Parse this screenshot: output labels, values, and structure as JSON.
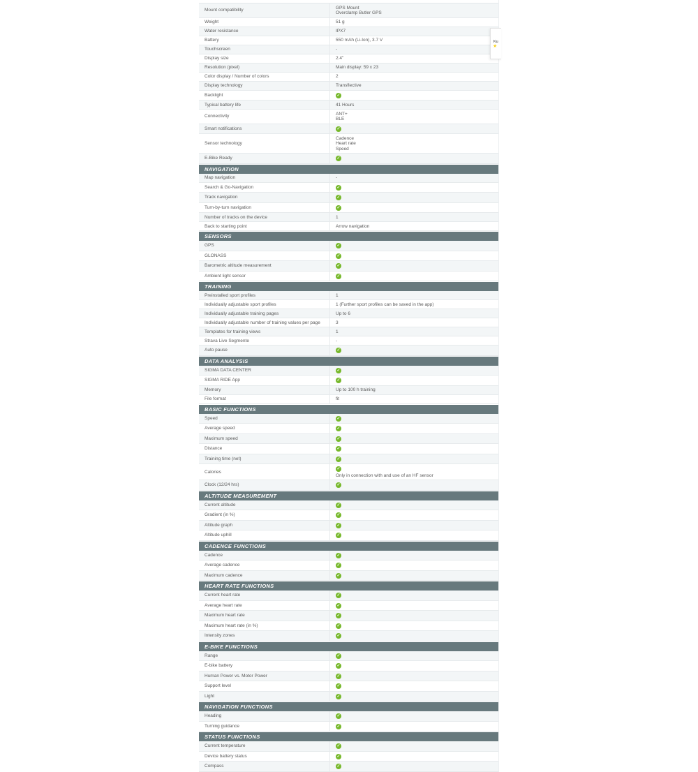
{
  "badge": {
    "label_fragment": "Ku",
    "star": "★"
  },
  "colors": {
    "section_header_bg": "#67797d",
    "check_green": "#76b82a",
    "row_alt_bg": "#f3f6f7",
    "star_yellow": "#f8d21c"
  },
  "check_symbol": "✓",
  "table": {
    "sections": [
      {
        "title": "",
        "rows": [
          {
            "label": "Mount compatibility",
            "lines": [
              "GPS Mount",
              "Overclamp Butler GPS"
            ]
          },
          {
            "label": "Weight",
            "lines": [
              "51 g"
            ]
          },
          {
            "label": "Water resistance",
            "lines": [
              "IPX7"
            ]
          },
          {
            "label": "Battery",
            "lines": [
              "550 mAh (Li-Ion), 3.7 V"
            ]
          },
          {
            "label": "Touchscreen",
            "lines": [
              "-"
            ]
          },
          {
            "label": "Display size",
            "lines": [
              "2.4\""
            ]
          },
          {
            "label": "Resolution (pixel)",
            "lines": [
              "Main display: 59 x 23"
            ]
          },
          {
            "label": "Color display / Number of colors",
            "lines": [
              "2"
            ]
          },
          {
            "label": "Display technology",
            "lines": [
              "Transflective"
            ]
          },
          {
            "label": "Backlight",
            "check": true
          },
          {
            "label": "Typical battery life",
            "lines": [
              "41 Hours"
            ]
          },
          {
            "label": "Connectivity",
            "lines": [
              "ANT+",
              "BLE"
            ]
          },
          {
            "label": "Smart notifications",
            "check": true
          },
          {
            "label": "Sensor technology",
            "lines": [
              "Cadence",
              "Heart rate",
              "Speed"
            ]
          },
          {
            "label": "E-Bike Ready",
            "check": true
          }
        ]
      },
      {
        "title": "NAVIGATION",
        "rows": [
          {
            "label": "Map navigation",
            "lines": [
              "-"
            ]
          },
          {
            "label": "Search & Go-Navigation",
            "check": true
          },
          {
            "label": "Track navigation",
            "check": true
          },
          {
            "label": "Turn-by-turn navigation",
            "check": true
          },
          {
            "label": "Number of tracks on the device",
            "lines": [
              "1"
            ]
          },
          {
            "label": "Back to starting point",
            "lines": [
              "Arrow navigation"
            ]
          }
        ]
      },
      {
        "title": "SENSORS",
        "rows": [
          {
            "label": "GPS",
            "check": true
          },
          {
            "label": "GLONASS",
            "check": true
          },
          {
            "label": "Barometric altitude measurement",
            "check": true
          },
          {
            "label": "Ambient light sensor",
            "check": true
          }
        ]
      },
      {
        "title": "TRAINING",
        "rows": [
          {
            "label": "Preinstalled sport profiles",
            "lines": [
              "1"
            ]
          },
          {
            "label": "Individually adjustable sport profiles",
            "lines": [
              "1 (Further sport profiles can be saved in the app)"
            ]
          },
          {
            "label": "Individually adjustable training pages",
            "lines": [
              "Up to 6"
            ]
          },
          {
            "label": "Individually adjustable number of training values per page",
            "lines": [
              "3"
            ]
          },
          {
            "label": "Templates for training views",
            "lines": [
              "1"
            ]
          },
          {
            "label": "Strava Live Segmente",
            "lines": [
              "-"
            ]
          },
          {
            "label": "Auto pause",
            "check": true
          }
        ]
      },
      {
        "title": "DATA ANALYSIS",
        "rows": [
          {
            "label": "SIGMA DATA CENTER",
            "check": true
          },
          {
            "label": "SIGMA RIDE App",
            "check": true
          },
          {
            "label": "Memory",
            "lines": [
              "Up to 100 h training"
            ]
          },
          {
            "label": "File format",
            "lines": [
              "fit"
            ]
          }
        ]
      },
      {
        "title": "BASIC FUNCTIONS",
        "rows": [
          {
            "label": "Speed",
            "check": true
          },
          {
            "label": "Average speed",
            "check": true
          },
          {
            "label": "Maximum speed",
            "check": true
          },
          {
            "label": "Distance",
            "check": true
          },
          {
            "label": "Training time (net)",
            "check": true
          },
          {
            "label": "Calories",
            "check": true,
            "note": "Only in connection with and use of an HF sensor"
          },
          {
            "label": "Clock (12/24 hrs)",
            "check": true
          }
        ]
      },
      {
        "title": "ALTITUDE MEASUREMENT",
        "rows": [
          {
            "label": "Current altitude",
            "check": true
          },
          {
            "label": "Gradient (in %)",
            "check": true
          },
          {
            "label": "Altitude graph",
            "check": true
          },
          {
            "label": "Altitude uphill",
            "check": true
          }
        ]
      },
      {
        "title": "CADENCE FUNCTIONS",
        "rows": [
          {
            "label": "Cadence",
            "check": true
          },
          {
            "label": "Average cadence",
            "check": true
          },
          {
            "label": "Maximum cadence",
            "check": true
          }
        ]
      },
      {
        "title": "HEART RATE FUNCTIONS",
        "rows": [
          {
            "label": "Current heart rate",
            "check": true
          },
          {
            "label": "Average heart rate",
            "check": true
          },
          {
            "label": "Maximum heart rate",
            "check": true
          },
          {
            "label": "Maximum heart rate (in %)",
            "check": true
          },
          {
            "label": "Intensity zones",
            "check": true
          }
        ]
      },
      {
        "title": "E-BIKE FUNCTIONS",
        "rows": [
          {
            "label": "Range",
            "check": true
          },
          {
            "label": "E-bike battery",
            "check": true
          },
          {
            "label": "Human Power vs. Motor Power",
            "check": true
          },
          {
            "label": "Support level",
            "check": true
          },
          {
            "label": "Light",
            "check": true
          }
        ]
      },
      {
        "title": "NAVIGATION FUNCTIONS",
        "rows": [
          {
            "label": "Heading",
            "check": true
          },
          {
            "label": "Turning guidance",
            "check": true
          }
        ]
      },
      {
        "title": "STATUS FUNCTIONS",
        "rows": [
          {
            "label": "Current temperature",
            "check": true
          },
          {
            "label": "Device battery status",
            "check": true
          },
          {
            "label": "Compass",
            "check": true
          }
        ]
      }
    ]
  }
}
